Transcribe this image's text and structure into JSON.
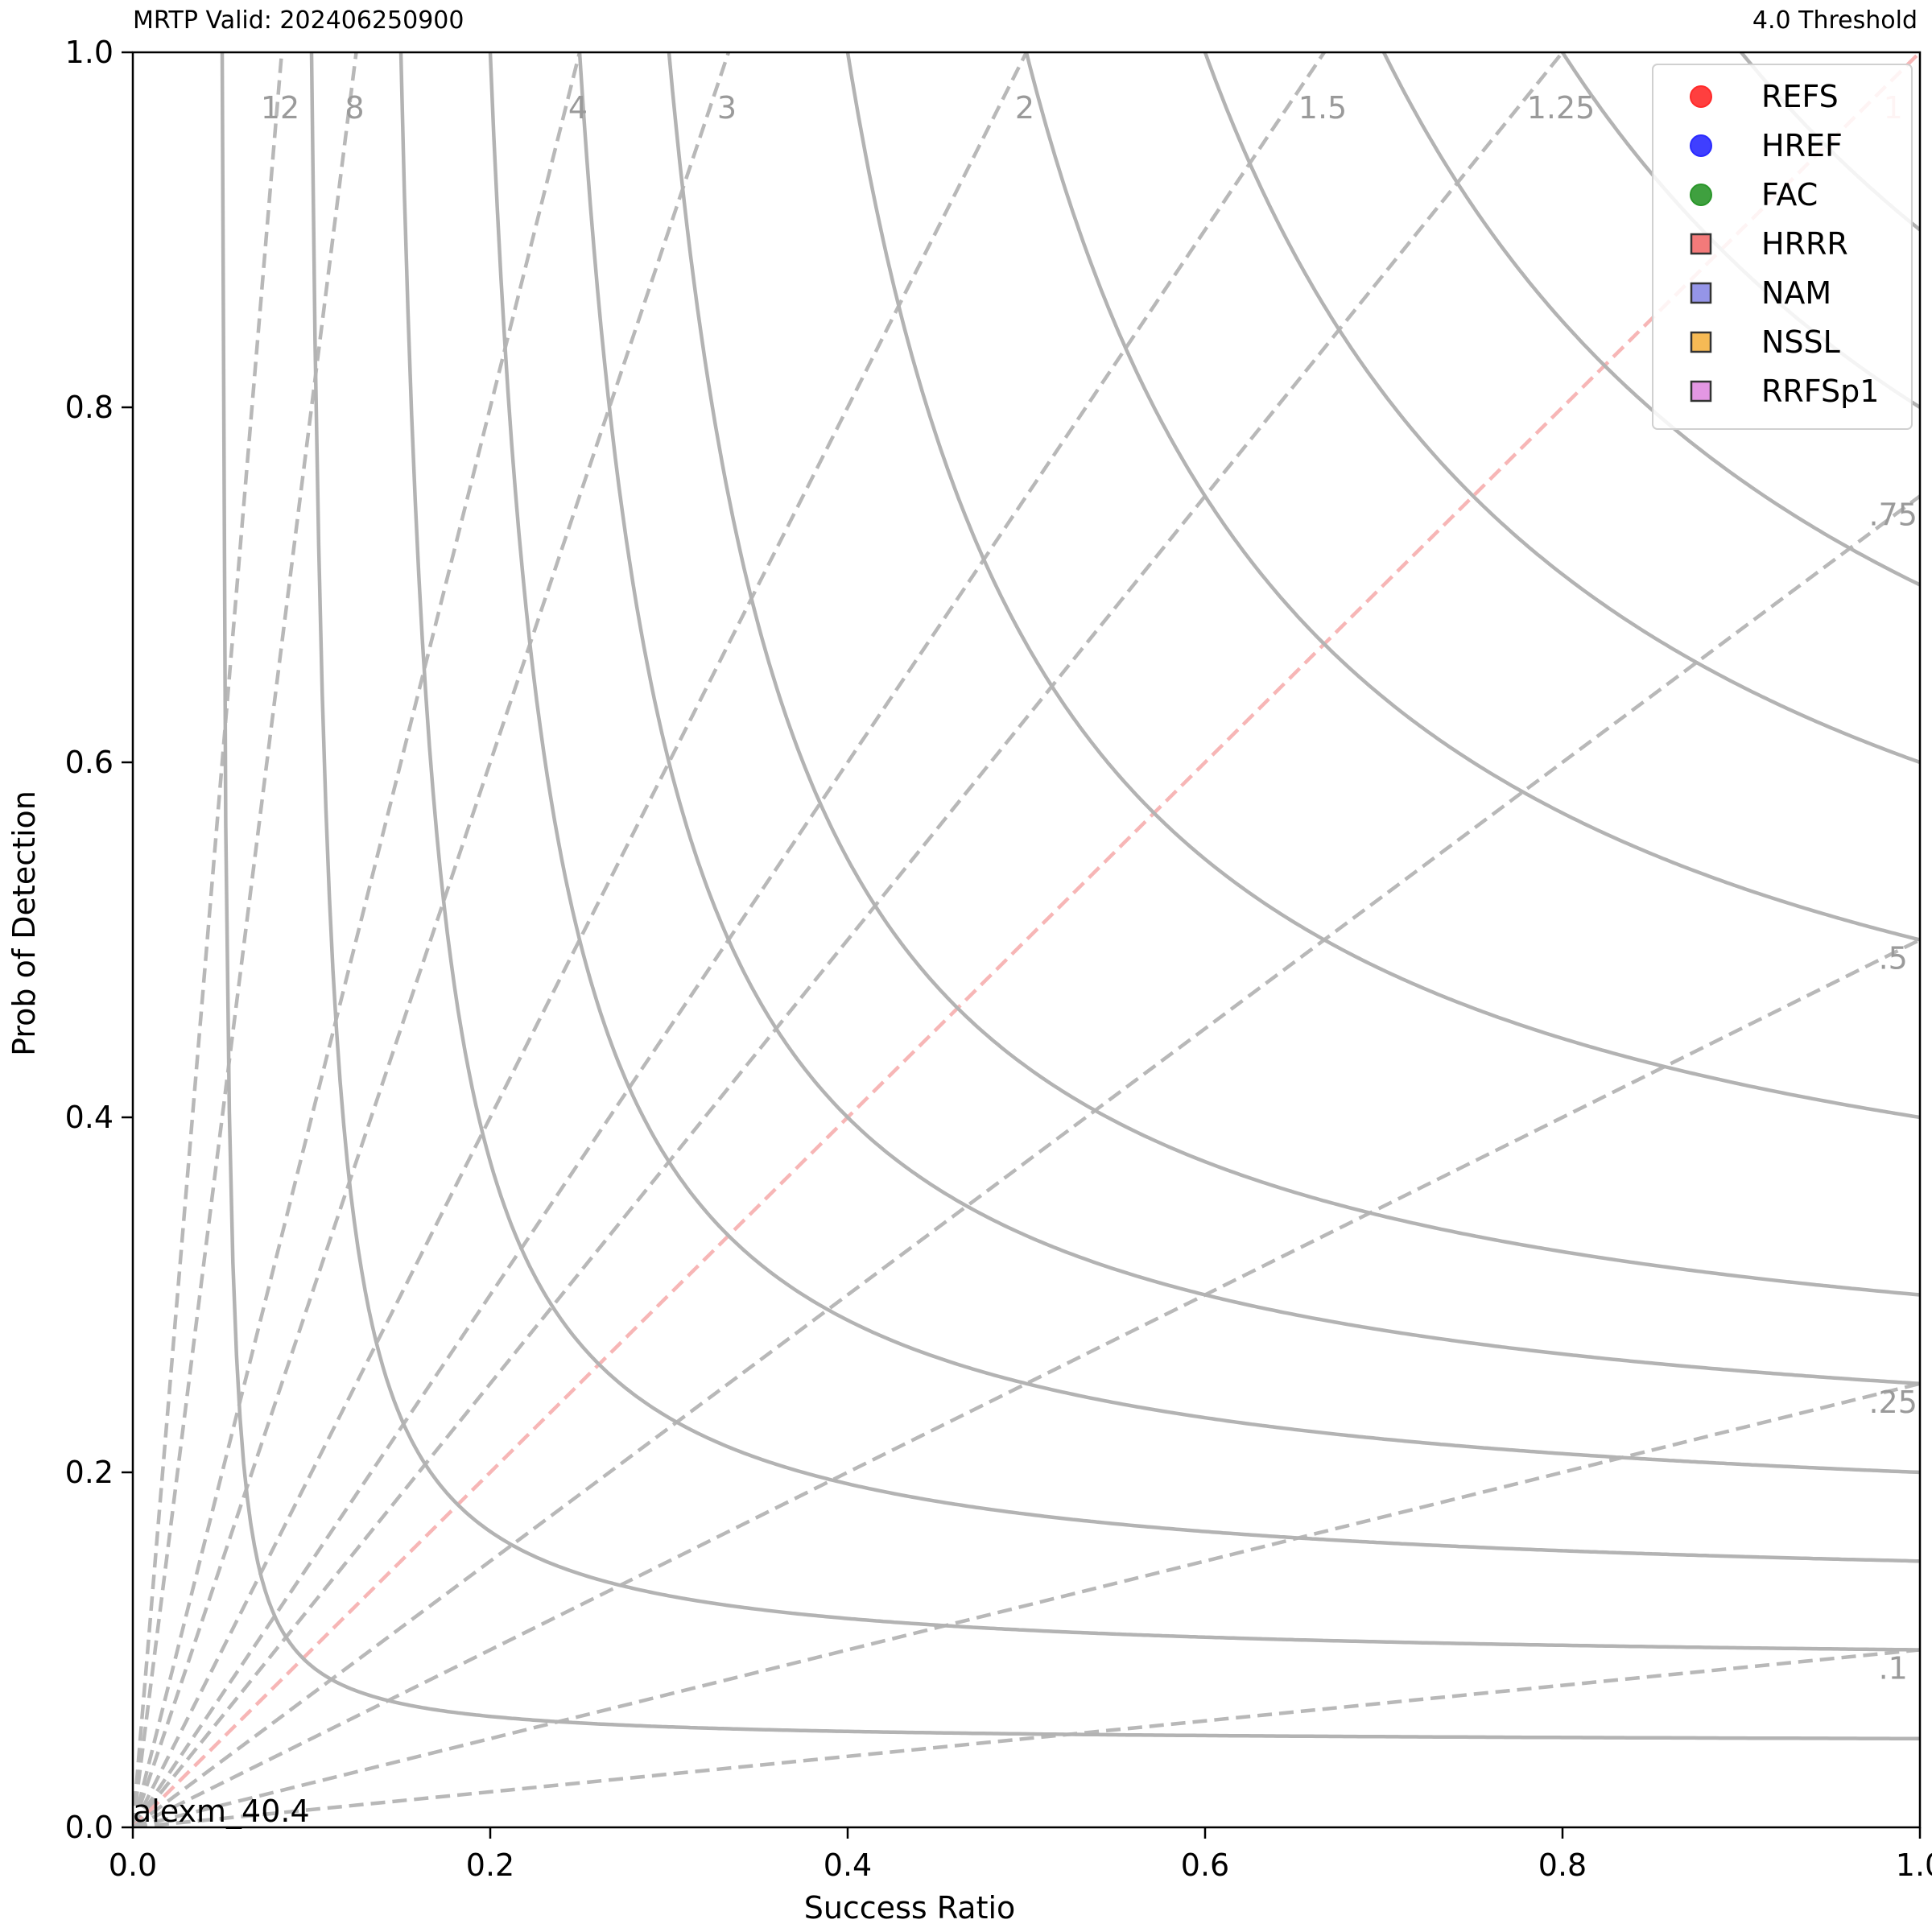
{
  "header": {
    "left_text": "MRTP Valid: 202406250900",
    "right_text": "4.0 Threshold"
  },
  "footnote": "alexm_40.4",
  "chart_data": {
    "type": "scatter",
    "subtype": "performance-diagram",
    "xlabel": "Success Ratio",
    "ylabel": "Prob of Detection",
    "xlim": [
      0.0,
      1.0
    ],
    "ylim": [
      0.0,
      1.0
    ],
    "x_ticks": [
      "0.0",
      "0.2",
      "0.4",
      "0.6",
      "0.8",
      "1.0"
    ],
    "y_ticks": [
      "0.0",
      "0.2",
      "0.4",
      "0.6",
      "0.8",
      "1.0"
    ],
    "grid": false,
    "legend_position": "top-right",
    "csi_contours": [
      0.05,
      0.1,
      0.15,
      0.2,
      0.25,
      0.3,
      0.4,
      0.5,
      0.6,
      0.7,
      0.8,
      0.9
    ],
    "bias_lines": [
      {
        "value": 12,
        "label": "12"
      },
      {
        "value": 8,
        "label": "8"
      },
      {
        "value": 4,
        "label": "4"
      },
      {
        "value": 3,
        "label": "3"
      },
      {
        "value": 2,
        "label": "2"
      },
      {
        "value": 1.5,
        "label": "1.5"
      },
      {
        "value": 1.25,
        "label": "1.25"
      },
      {
        "value": 1,
        "label": "1"
      },
      {
        "value": 0.75,
        "label": ".75"
      },
      {
        "value": 0.5,
        "label": ".5"
      },
      {
        "value": 0.25,
        "label": ".25"
      },
      {
        "value": 0.1,
        "label": ".1"
      }
    ],
    "series": [
      {
        "name": "REFS",
        "marker": "circle",
        "color": "#ff2a2a",
        "points": []
      },
      {
        "name": "HREF",
        "marker": "circle",
        "color": "#2a2aff",
        "points": []
      },
      {
        "name": "FAC",
        "marker": "circle",
        "color": "#2a962a",
        "points": []
      },
      {
        "name": "HRRR",
        "marker": "square",
        "color": "#f26b6b",
        "points": []
      },
      {
        "name": "NAM",
        "marker": "square",
        "color": "#8a8ae6",
        "points": []
      },
      {
        "name": "NSSL",
        "marker": "square",
        "color": "#f5b342",
        "points": []
      },
      {
        "name": "RRFSp1",
        "marker": "square",
        "color": "#e08ce0",
        "points": []
      }
    ]
  }
}
